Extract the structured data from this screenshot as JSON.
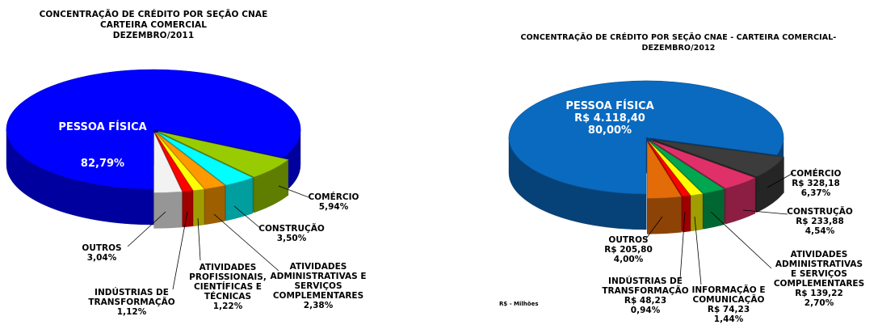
{
  "chart_data": [
    {
      "type": "pie",
      "title_lines": [
        "CONCENTRAÇÃO DE CRÉDITO POR SEÇÃO CNAE",
        "CARTEIRA COMERCIAL",
        "DEZEMBRO/2011"
      ],
      "slices": [
        {
          "name": "PESSOA FÍSICA",
          "value": 82.79,
          "display": "82,79%",
          "color": "#0000ff"
        },
        {
          "name": "COMÉRCIO",
          "value": 5.94,
          "display": "5,94%",
          "color": "#99cc00"
        },
        {
          "name": "CONSTRUÇÃO",
          "value": 3.5,
          "display": "3,50%",
          "color": "#00ffff"
        },
        {
          "name": "ATIVIDADES ADMINISTRATIVAS E SERVIÇOS COMPLEMENTARES",
          "value": 2.38,
          "display": "2,38%",
          "color": "#ff9900"
        },
        {
          "name": "ATIVIDADES PROFISSIONAIS, CIENTÍFICAS E TÉCNICAS",
          "value": 1.22,
          "display": "1,22%",
          "color": "#ffff00"
        },
        {
          "name": "INDÚSTRIAS DE TRANSFORMAÇÃO",
          "value": 1.12,
          "display": "1,12%",
          "color": "#ff0000"
        },
        {
          "name": "OUTROS",
          "value": 3.04,
          "display": "3,04%",
          "color": "#f2f2f2"
        }
      ],
      "labels": {
        "main_name": "PESSOA FÍSICA",
        "main_pct": "82,79%",
        "comercio": "COMÉRCIO\n5,94%",
        "construcao": "CONSTRUÇÃO\n3,50%",
        "administrativas": "ATIVIDADES\nADMINISTRATIVAS E\nSERVIÇOS\nCOMPLEMENTARES\n2,38%",
        "profissionais": "ATIVIDADES\nPROFISSIONAIS,\nCIENTÍFICAS E\nTÉCNICAS\n1,22%",
        "industrias": "INDÚSTRIAS DE\nTRANSFORMAÇÃO\n1,12%",
        "outros": "OUTROS\n3,04%"
      }
    },
    {
      "type": "pie",
      "title": "CONCENTRAÇÃO DE CRÉDITO POR SEÇÃO CNAE - CARTEIRA COMERCIAL-  DEZEMBRO/2012",
      "unit_note": "R$ - Milhões",
      "slices": [
        {
          "name": "PESSOA FÍSICA",
          "value": 80.0,
          "amount": "R$ 4.118,40",
          "display": "80,00%",
          "color": "#0a6ac0"
        },
        {
          "name": "COMÉRCIO",
          "value": 6.37,
          "amount": "R$ 328,18",
          "display": "6,37%",
          "color": "#3c3c3c"
        },
        {
          "name": "CONSTRUÇÃO",
          "value": 4.54,
          "amount": "R$ 233,88",
          "display": "4,54%",
          "color": "#e0306a"
        },
        {
          "name": "ATIVIDADES ADMINISTRATIVAS E SERVIÇOS COMPLEMENTARES",
          "value": 2.7,
          "amount": "R$ 139,22",
          "display": "2,70%",
          "color": "#00a650"
        },
        {
          "name": "INFORMAÇÃO E COMUNICAÇÃO",
          "value": 1.44,
          "amount": "R$ 74,23",
          "display": "1,44%",
          "color": "#ffff00"
        },
        {
          "name": "INDÚSTRIAS DE TRANSFORMAÇÃO",
          "value": 0.94,
          "amount": "R$ 48,23",
          "display": "0,94%",
          "color": "#ff0000"
        },
        {
          "name": "OUTROS",
          "value": 4.0,
          "amount": "R$ 205,80",
          "display": "4,00%",
          "color": "#e36c09"
        }
      ],
      "labels": {
        "main": "PESSOA FÍSICA\nR$ 4.118,40\n80,00%",
        "comercio": "COMÉRCIO\nR$ 328,18\n6,37%",
        "construcao": "CONSTRUÇÃO\nR$ 233,88\n4,54%",
        "administrativas": "ATIVIDADES\nADMINISTRATIVAS\nE SERVIÇOS\nCOMPLEMENTARES\nR$ 139,22\n2,70%",
        "informacao": "INFORMAÇÃO E\nCOMUNICAÇÃO\nR$ 74,23\n1,44%",
        "industrias": "INDÚSTRIAS DE\nTRANSFORMAÇÃO\nR$ 48,23\n0,94%",
        "outros": "OUTROS\nR$ 205,80\n4,00%"
      }
    }
  ]
}
